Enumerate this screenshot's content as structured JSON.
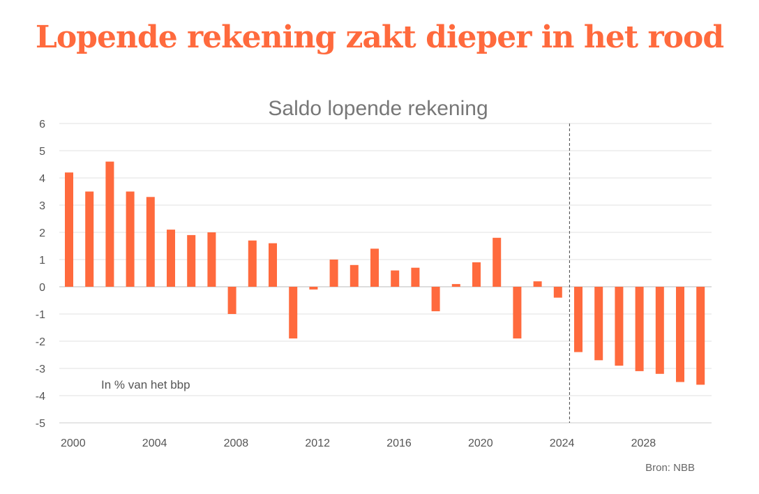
{
  "headline": "Lopende rekening zakt dieper in het rood",
  "source": "Bron: NBB",
  "chart_data": {
    "type": "bar",
    "title": "Saldo lopende rekening",
    "annotation": "In % van het bbp",
    "xlabel": "",
    "ylabel": "",
    "ylim": [
      -5,
      6
    ],
    "yticks": [
      "6",
      "5",
      "4",
      "3",
      "2",
      "1",
      "0",
      "-1",
      "-2",
      "-3",
      "-4",
      "-5"
    ],
    "xtick_labels": [
      "2000",
      "2004",
      "2008",
      "2012",
      "2016",
      "2020",
      "2024",
      "2028"
    ],
    "forecast_divider_after": 2024,
    "grid": true,
    "bar_color": "#ff6a3d",
    "categories": [
      2000,
      2001,
      2002,
      2003,
      2004,
      2005,
      2006,
      2007,
      2008,
      2009,
      2010,
      2011,
      2012,
      2013,
      2014,
      2015,
      2016,
      2017,
      2018,
      2019,
      2020,
      2021,
      2022,
      2023,
      2024,
      2025,
      2026,
      2027,
      2028,
      2029,
      2030,
      2031
    ],
    "values": [
      4.2,
      3.5,
      4.6,
      3.5,
      3.3,
      2.1,
      1.9,
      2.0,
      -1.0,
      1.7,
      1.6,
      -1.9,
      -0.1,
      1.0,
      0.8,
      1.4,
      0.6,
      0.7,
      -0.9,
      0.1,
      0.9,
      1.8,
      -1.9,
      0.2,
      -0.4,
      -2.4,
      -2.7,
      -2.9,
      -3.1,
      -3.2,
      -3.5,
      -3.6
    ]
  }
}
